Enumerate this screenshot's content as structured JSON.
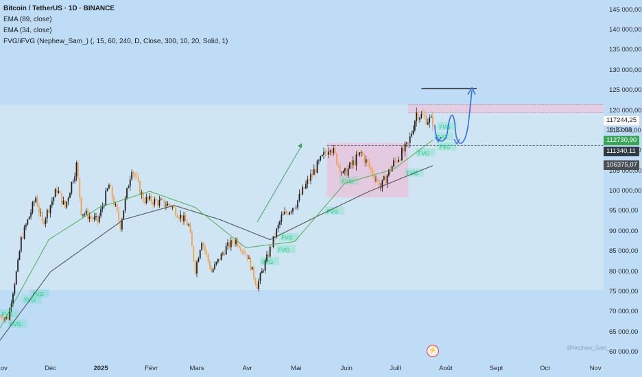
{
  "header": {
    "symbol_line": "Bitcoin / TetherUS · 1D · BINANCE",
    "indicators": [
      "EMA (89, close)",
      "EMA (34, close)",
      "FVG/iFVG (Nephew_Sam_) (, 15, 60, 240, D, Close, 300, 10, 20, Solid, 1)"
    ]
  },
  "price_tags": {
    "current": "117244,25",
    "countdown": "19:23:03",
    "ema_fast": "112730,90",
    "support": "111340,11",
    "ema_slow": "106375,07"
  },
  "watermark": "@Nephew_Sam_",
  "colors": {
    "background": "#bfdcf6",
    "up": "#1f1f1f",
    "down": "#f2a04a",
    "ema89": "#555555",
    "ema34": "#4caf50",
    "fvg": "#2ee89a",
    "range_box": "#e8c6dc",
    "projection": "#2f6fe0"
  },
  "chart_data": {
    "type": "candlestick",
    "title": "Bitcoin / TetherUS · 1D · BINANCE",
    "y_ticks": [
      145000,
      140000,
      135000,
      130000,
      125000,
      120000,
      115000,
      110000,
      105000,
      100000,
      95000,
      90000,
      85000,
      80000,
      75000,
      70000,
      65000,
      60000
    ],
    "y_tick_labels": [
      "145 000,00",
      "140 000,00",
      "135 000,00",
      "130 000,00",
      "125 000,00",
      "120 000,00",
      "115 000,00",
      "110 000,00",
      "105 000,00",
      "100 000,00",
      "95 000,00",
      "90 000,00",
      "85 000,00",
      "80 000,00",
      "75 000,00",
      "70 000,00",
      "65 000,00",
      "60 000,00"
    ],
    "ylim": [
      59000,
      147500
    ],
    "x_ticks": [
      "Nov",
      "Déc",
      "2025",
      "Févr",
      "Mars",
      "Avr",
      "Mai",
      "Juin",
      "Juill",
      "Août",
      "Sept",
      "Oct",
      "Nov"
    ],
    "xlim": [
      "2024-10-31",
      "2025-11-06"
    ],
    "price_anchors": [
      [
        "2024-10-31",
        69000
      ],
      [
        "2024-11-05",
        68500
      ],
      [
        "2024-11-11",
        82000
      ],
      [
        "2024-11-13",
        88000
      ],
      [
        "2024-11-22",
        98500
      ],
      [
        "2024-11-26",
        92000
      ],
      [
        "2024-12-05",
        100500
      ],
      [
        "2024-12-10",
        96000
      ],
      [
        "2024-12-17",
        106500
      ],
      [
        "2024-12-20",
        95000
      ],
      [
        "2024-12-30",
        92500
      ],
      [
        "2025-01-06",
        101500
      ],
      [
        "2025-01-13",
        91500
      ],
      [
        "2025-01-20",
        106000
      ],
      [
        "2025-01-27",
        98000
      ],
      [
        "2025-02-03",
        97500
      ],
      [
        "2025-02-13",
        96500
      ],
      [
        "2025-02-24",
        91500
      ],
      [
        "2025-02-28",
        80500
      ],
      [
        "2025-03-04",
        88000
      ],
      [
        "2025-03-10",
        80000
      ],
      [
        "2025-03-19",
        86000
      ],
      [
        "2025-03-25",
        88000
      ],
      [
        "2025-04-01",
        84000
      ],
      [
        "2025-04-07",
        76500
      ],
      [
        "2025-04-14",
        84500
      ],
      [
        "2025-04-22",
        93500
      ],
      [
        "2025-05-01",
        97000
      ],
      [
        "2025-05-09",
        103000
      ],
      [
        "2025-05-22",
        111500
      ],
      [
        "2025-05-30",
        104000
      ],
      [
        "2025-06-10",
        109500
      ],
      [
        "2025-06-22",
        101000
      ],
      [
        "2025-06-30",
        107000
      ],
      [
        "2025-07-09",
        111500
      ],
      [
        "2025-07-14",
        119500
      ],
      [
        "2025-07-20",
        118000
      ],
      [
        "2025-07-24",
        117244
      ]
    ],
    "ema_89": [
      [
        "2024-10-31",
        63000
      ],
      [
        "2024-12-01",
        80000
      ],
      [
        "2025-01-15",
        93000
      ],
      [
        "2025-02-15",
        96500
      ],
      [
        "2025-03-15",
        93000
      ],
      [
        "2025-04-15",
        88000
      ],
      [
        "2025-05-15",
        94000
      ],
      [
        "2025-06-15",
        100000
      ],
      [
        "2025-07-24",
        106375
      ]
    ],
    "ema_34": [
      [
        "2024-10-31",
        66000
      ],
      [
        "2024-11-30",
        88000
      ],
      [
        "2024-12-31",
        96000
      ],
      [
        "2025-01-31",
        100000
      ],
      [
        "2025-02-28",
        96000
      ],
      [
        "2025-03-31",
        86000
      ],
      [
        "2025-04-30",
        87500
      ],
      [
        "2025-05-31",
        102000
      ],
      [
        "2025-06-30",
        105500
      ],
      [
        "2025-07-24",
        112731
      ]
    ],
    "range_zone": {
      "from": "2024-10-31",
      "to": "2025-11-06",
      "low": 75500,
      "high": 121500
    },
    "box_upper": {
      "from": "2025-07-09",
      "to": "2025-11-06",
      "low": 119500,
      "high": 121500
    },
    "box_range": {
      "from": "2025-05-20",
      "to": "2025-07-09",
      "low": 98500,
      "high": 112000
    },
    "resistance_line": {
      "from": "2025-07-17",
      "to": "2025-08-20",
      "value": 125500
    },
    "support_line": {
      "value": 111340
    },
    "fvg_labels": [
      [
        "2024-11-01",
        69500
      ],
      [
        "2024-11-06",
        67000
      ],
      [
        "2024-11-15",
        73000
      ],
      [
        "2024-11-20",
        74500
      ],
      [
        "2025-04-10",
        82500
      ],
      [
        "2025-04-20",
        85500
      ],
      [
        "2025-04-22",
        88500
      ],
      [
        "2025-05-20",
        95000
      ],
      [
        "2025-05-29",
        102500
      ],
      [
        "2025-07-08",
        104500
      ],
      [
        "2025-07-15",
        109500
      ],
      [
        "2025-07-28",
        111000
      ],
      [
        "2025-07-26",
        113500
      ],
      [
        "2025-07-28",
        116000
      ]
    ]
  }
}
